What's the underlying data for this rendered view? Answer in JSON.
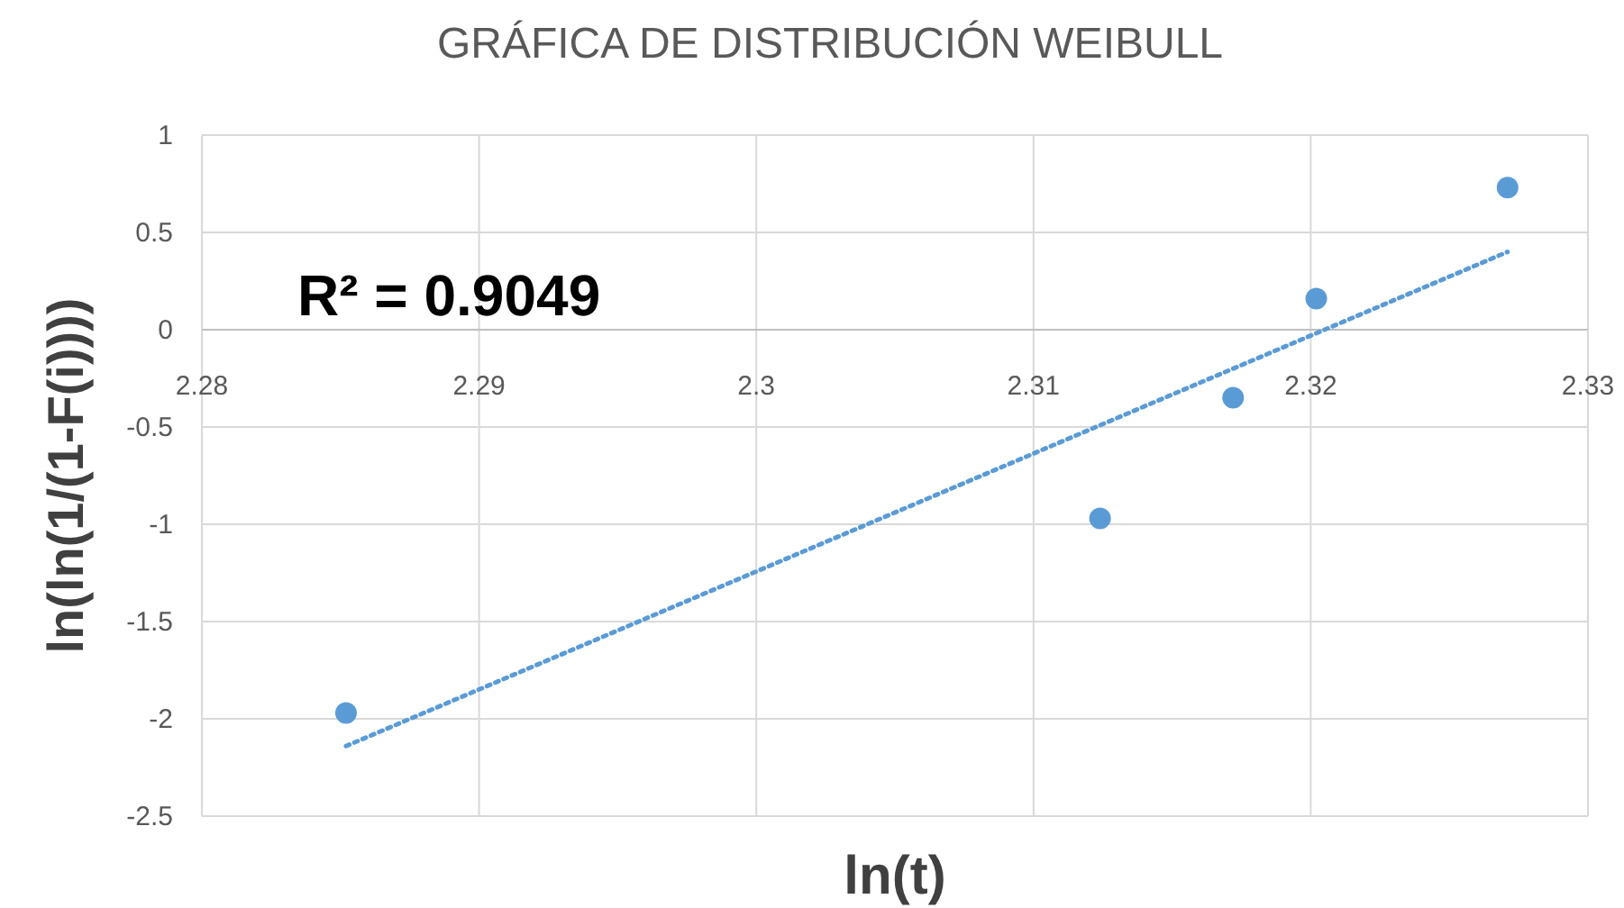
{
  "chart_data": {
    "type": "scatter",
    "title": "GRÁFICA DE DISTRIBUCIÓN WEIBULL",
    "xlabel": "ln(t)",
    "ylabel": "ln(ln(1/(1-F(i))))",
    "xlim": [
      2.28,
      2.33
    ],
    "xticks": [
      2.28,
      2.29,
      2.3,
      2.31,
      2.32,
      2.33
    ],
    "ylim": [
      -2.5,
      1
    ],
    "yticks": [
      -2.5,
      -2,
      -1.5,
      -1,
      -0.5,
      0,
      0.5,
      1
    ],
    "grid": true,
    "marker": "circle",
    "annotations": [
      "R² = 0.9049"
    ],
    "series": [
      {
        "color": "#5b9bd5",
        "x": [
          2.2852,
          2.3124,
          2.3172,
          2.3202,
          2.3271
        ],
        "values": [
          -1.97,
          -0.97,
          -0.35,
          0.16,
          0.73
        ]
      },
      {
        "type": "line",
        "color": "#5b9bd5",
        "line_style": "dotted",
        "marker": "none",
        "x": [
          2.2852,
          2.3271
        ],
        "values": [
          -2.14,
          0.4
        ]
      }
    ]
  }
}
